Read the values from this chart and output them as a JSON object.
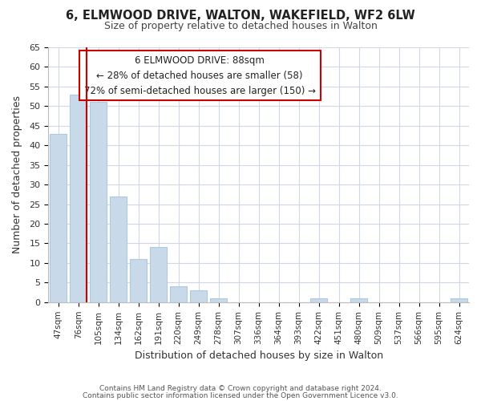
{
  "title": "6, ELMWOOD DRIVE, WALTON, WAKEFIELD, WF2 6LW",
  "subtitle": "Size of property relative to detached houses in Walton",
  "xlabel": "Distribution of detached houses by size in Walton",
  "ylabel": "Number of detached properties",
  "bar_labels": [
    "47sqm",
    "76sqm",
    "105sqm",
    "134sqm",
    "162sqm",
    "191sqm",
    "220sqm",
    "249sqm",
    "278sqm",
    "307sqm",
    "336sqm",
    "364sqm",
    "393sqm",
    "422sqm",
    "451sqm",
    "480sqm",
    "509sqm",
    "537sqm",
    "566sqm",
    "595sqm",
    "624sqm"
  ],
  "bar_values": [
    43,
    53,
    51,
    27,
    11,
    14,
    4,
    3,
    1,
    0,
    0,
    0,
    0,
    1,
    0,
    1,
    0,
    0,
    0,
    0,
    1
  ],
  "bar_color": "#c8daea",
  "bar_edge_color": "#afc8de",
  "highlight_line_color": "#cc0000",
  "ylim": [
    0,
    65
  ],
  "yticks": [
    0,
    5,
    10,
    15,
    20,
    25,
    30,
    35,
    40,
    45,
    50,
    55,
    60,
    65
  ],
  "annotation_title": "6 ELMWOOD DRIVE: 88sqm",
  "annotation_line1": "← 28% of detached houses are smaller (58)",
  "annotation_line2": "72% of semi-detached houses are larger (150) →",
  "annotation_box_color": "#ffffff",
  "annotation_box_edge": "#cc0000",
  "footer1": "Contains HM Land Registry data © Crown copyright and database right 2024.",
  "footer2": "Contains public sector information licensed under the Open Government Licence v3.0.",
  "background_color": "#ffffff",
  "grid_color": "#d0d8e8"
}
